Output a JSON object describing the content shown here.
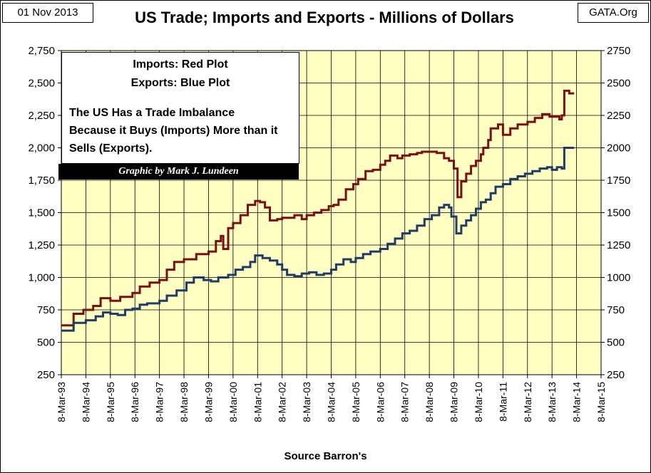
{
  "header": {
    "date": "01 Nov 2013",
    "title": "US Trade; Imports and Exports - Millions of Dollars",
    "source_site": "GATA.Org"
  },
  "legend": {
    "imports": "Imports:  Red Plot",
    "exports": "Exports:   Blue Plot",
    "note": "The US Has a Trade  Imbalance Because it Buys (Imports) More than it Sells (Exports).",
    "credit": "Graphic by Mark J. Lundeen"
  },
  "chart_data": {
    "type": "line",
    "title": "US Trade; Imports and Exports - Millions of Dollars",
    "xlabel": "Source Barron's",
    "ylabel": "",
    "ylim": [
      250,
      2750
    ],
    "xlim": [
      1993,
      2015
    ],
    "grid": true,
    "y_ticks_left": [
      "250",
      "500",
      "750",
      "1,000",
      "1,250",
      "1,500",
      "1,750",
      "2,000",
      "2,250",
      "2,500",
      "2,750"
    ],
    "y_ticks_right": [
      "250",
      "500",
      "750",
      "1000",
      "1250",
      "1500",
      "1750",
      "2000",
      "2250",
      "2500",
      "2750"
    ],
    "x_ticks": [
      "8-Mar-93",
      "8-Mar-94",
      "8-Mar-95",
      "8-Mar-96",
      "8-Mar-97",
      "8-Mar-98",
      "8-Mar-99",
      "8-Mar-00",
      "8-Mar-01",
      "8-Mar-02",
      "8-Mar-03",
      "8-Mar-04",
      "8-Mar-05",
      "8-Mar-06",
      "8-Mar-07",
      "8-Mar-08",
      "8-Mar-09",
      "8-Mar-10",
      "8-Mar-11",
      "8-Mar-12",
      "8-Mar-13",
      "8-Mar-14",
      "8-Mar-15"
    ],
    "series": [
      {
        "name": "Imports",
        "color": "#7b0f12",
        "x": [
          1993.0,
          1993.4,
          1993.5,
          1993.9,
          1994.3,
          1994.6,
          1995.0,
          1995.4,
          1995.6,
          1995.9,
          1996.2,
          1996.6,
          1997.0,
          1997.3,
          1997.6,
          1998.0,
          1998.5,
          1999.0,
          1999.3,
          1999.5,
          1999.6,
          1999.8,
          2000.0,
          2000.3,
          2000.6,
          2000.9,
          2001.1,
          2001.3,
          2001.5,
          2001.8,
          2002.0,
          2002.3,
          2002.5,
          2002.8,
          2003.0,
          2003.3,
          2003.6,
          2003.9,
          2004.1,
          2004.3,
          2004.6,
          2004.9,
          2005.1,
          2005.4,
          2005.7,
          2006.0,
          2006.2,
          2006.4,
          2006.7,
          2006.9,
          2007.2,
          2007.5,
          2007.7,
          2008.0,
          2008.3,
          2008.6,
          2008.8,
          2009.0,
          2009.15,
          2009.3,
          2009.5,
          2009.7,
          2009.9,
          2010.1,
          2010.2,
          2010.4,
          2010.5,
          2010.8,
          2011.0,
          2011.3,
          2011.6,
          2012.0,
          2012.3,
          2012.6,
          2012.9,
          2013.1,
          2013.3,
          2013.4,
          2013.5,
          2013.7
        ],
        "values": [
          630,
          630,
          720,
          750,
          780,
          840,
          820,
          850,
          850,
          880,
          930,
          960,
          980,
          1060,
          1120,
          1140,
          1180,
          1200,
          1280,
          1320,
          1220,
          1380,
          1420,
          1480,
          1560,
          1590,
          1580,
          1540,
          1440,
          1450,
          1460,
          1460,
          1480,
          1450,
          1480,
          1500,
          1520,
          1550,
          1560,
          1600,
          1680,
          1720,
          1760,
          1820,
          1830,
          1870,
          1900,
          1940,
          1920,
          1940,
          1950,
          1960,
          1970,
          1970,
          1960,
          1920,
          1900,
          1840,
          1620,
          1740,
          1800,
          1860,
          1900,
          1950,
          2000,
          2060,
          2150,
          2180,
          2100,
          2150,
          2180,
          2200,
          2230,
          2260,
          2240,
          2240,
          2220,
          2250,
          2440,
          2420
        ]
      },
      {
        "name": "Exports",
        "color": "#1f3c64",
        "x": [
          1993.0,
          1993.5,
          1994.0,
          1994.4,
          1994.7,
          1995.0,
          1995.3,
          1995.6,
          1995.9,
          1996.2,
          1996.5,
          1997.0,
          1997.3,
          1997.7,
          1998.1,
          1998.4,
          1998.8,
          1999.1,
          1999.4,
          1999.8,
          2000.1,
          2000.4,
          2000.7,
          2000.9,
          2001.2,
          2001.5,
          2001.8,
          2002.0,
          2002.2,
          2002.5,
          2002.8,
          2003.1,
          2003.4,
          2003.7,
          2004.0,
          2004.2,
          2004.5,
          2004.8,
          2005.0,
          2005.3,
          2005.6,
          2006.0,
          2006.3,
          2006.6,
          2006.9,
          2007.2,
          2007.5,
          2007.8,
          2008.1,
          2008.4,
          2008.6,
          2008.8,
          2008.9,
          2009.1,
          2009.3,
          2009.5,
          2009.7,
          2009.9,
          2010.1,
          2010.3,
          2010.5,
          2010.7,
          2011.0,
          2011.3,
          2011.6,
          2011.9,
          2012.2,
          2012.5,
          2012.8,
          2013.0,
          2013.2,
          2013.4,
          2013.5,
          2013.7
        ],
        "values": [
          590,
          650,
          670,
          700,
          730,
          720,
          710,
          750,
          760,
          790,
          800,
          820,
          860,
          900,
          960,
          1000,
          980,
          970,
          1000,
          1020,
          1060,
          1080,
          1120,
          1170,
          1150,
          1130,
          1100,
          1060,
          1020,
          1010,
          1030,
          1040,
          1020,
          1030,
          1060,
          1100,
          1140,
          1120,
          1150,
          1180,
          1200,
          1220,
          1260,
          1300,
          1340,
          1360,
          1400,
          1450,
          1480,
          1540,
          1560,
          1540,
          1470,
          1340,
          1400,
          1440,
          1480,
          1530,
          1580,
          1600,
          1650,
          1700,
          1720,
          1760,
          1780,
          1800,
          1820,
          1840,
          1850,
          1830,
          1850,
          1840,
          2000,
          2000
        ]
      }
    ]
  }
}
